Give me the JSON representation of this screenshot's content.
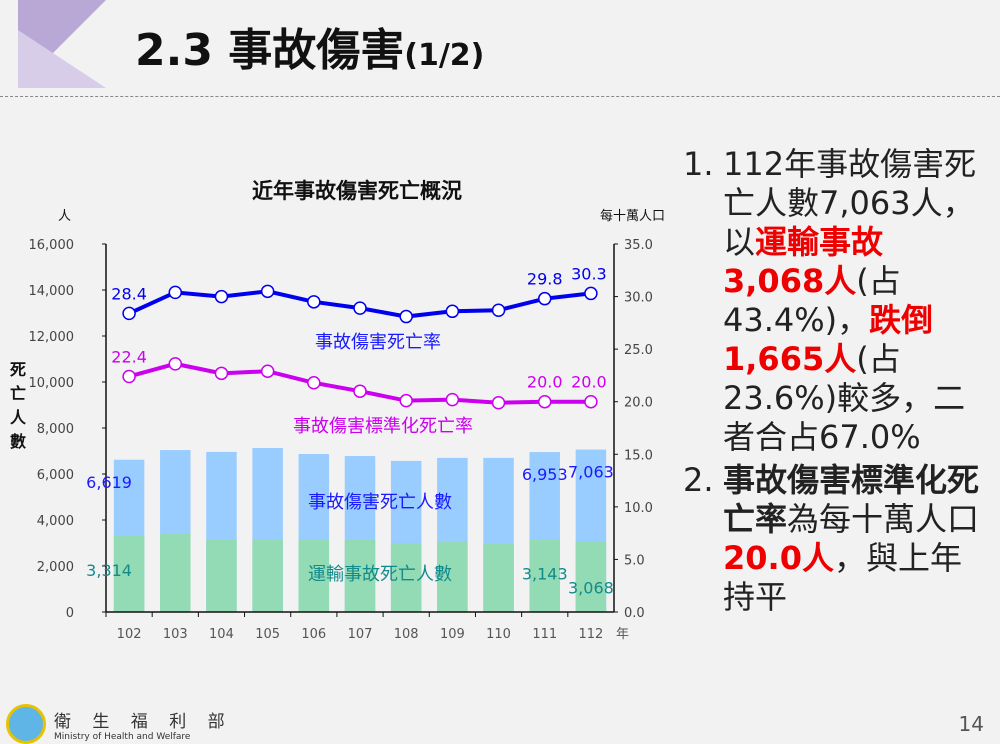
{
  "header": {
    "title": "2.3 事故傷害",
    "title_suffix": "(1/2)"
  },
  "chart_data": {
    "type": "bar+line",
    "title": "近年事故傷害死亡概況",
    "categories": [
      "102",
      "103",
      "104",
      "105",
      "106",
      "107",
      "108",
      "109",
      "110",
      "111",
      "112"
    ],
    "xlabel": "年",
    "ylabel_left": "死亡人數",
    "ylabel_left_unit": "人",
    "ylim_left": [
      0,
      16000
    ],
    "yticks_left": [
      "0",
      "2,000",
      "4,000",
      "6,000",
      "8,000",
      "10,000",
      "12,000",
      "14,000",
      "16,000"
    ],
    "ylabel_right_unit": "每十萬人口",
    "ylim_right": [
      0,
      35
    ],
    "yticks_right": [
      "0.0",
      "5.0",
      "10.0",
      "15.0",
      "20.0",
      "25.0",
      "30.0",
      "35.0"
    ],
    "bars": [
      {
        "name": "事故傷害死亡人數",
        "color": "#99ccff",
        "label_color": "#1a1aff",
        "values": [
          6619,
          7040,
          6960,
          7130,
          6870,
          6780,
          6570,
          6700,
          6700,
          6953,
          7063
        ],
        "labels": {
          "0": "6,619",
          "9": "6,953",
          "10": "7,063"
        }
      },
      {
        "name": "運輸事故死亡人數",
        "color": "#93dbb4",
        "label_color": "#138a8a",
        "values": [
          3314,
          3390,
          3130,
          3170,
          3170,
          3130,
          3000,
          3040,
          2960,
          3143,
          3068
        ],
        "labels": {
          "0": "3,314",
          "9": "3,143",
          "10": "3,068"
        }
      }
    ],
    "lines": [
      {
        "name": "事故傷害死亡率",
        "color": "#0000ee",
        "values": [
          28.4,
          30.4,
          30.0,
          30.5,
          29.5,
          28.9,
          28.1,
          28.6,
          28.7,
          29.8,
          30.3
        ],
        "labels": {
          "0": "28.4",
          "9": "29.8",
          "10": "30.3"
        }
      },
      {
        "name": "事故傷害標準化死亡率",
        "color": "#cc00ee",
        "values": [
          22.4,
          23.6,
          22.7,
          22.9,
          21.8,
          21.0,
          20.1,
          20.2,
          19.9,
          20.0,
          20.0
        ],
        "labels": {
          "0": "22.4",
          "9": "20.0",
          "10": "20.0"
        }
      }
    ]
  },
  "notes": [
    {
      "num": "1.",
      "parts": [
        {
          "t": "112年事故傷害死亡人數7,063人，以",
          "s": ""
        },
        {
          "t": "運輸事故3,068人",
          "s": "red"
        },
        {
          "t": "(占43.4%)，",
          "s": ""
        },
        {
          "t": "跌倒1,665人",
          "s": "red"
        },
        {
          "t": "(占23.6%)較多，二者合占67.0%",
          "s": ""
        }
      ]
    },
    {
      "num": "2.",
      "parts": [
        {
          "t": "事故傷害標準化死亡率",
          "s": "b"
        },
        {
          "t": "為每十萬人口",
          "s": ""
        },
        {
          "t": "20.0人",
          "s": "red"
        },
        {
          "t": "，與上年持平",
          "s": ""
        }
      ]
    }
  ],
  "footer": {
    "org_zh": "衛 生 福 利 部",
    "org_en": "Ministry of Health and Welfare",
    "page": "14"
  }
}
